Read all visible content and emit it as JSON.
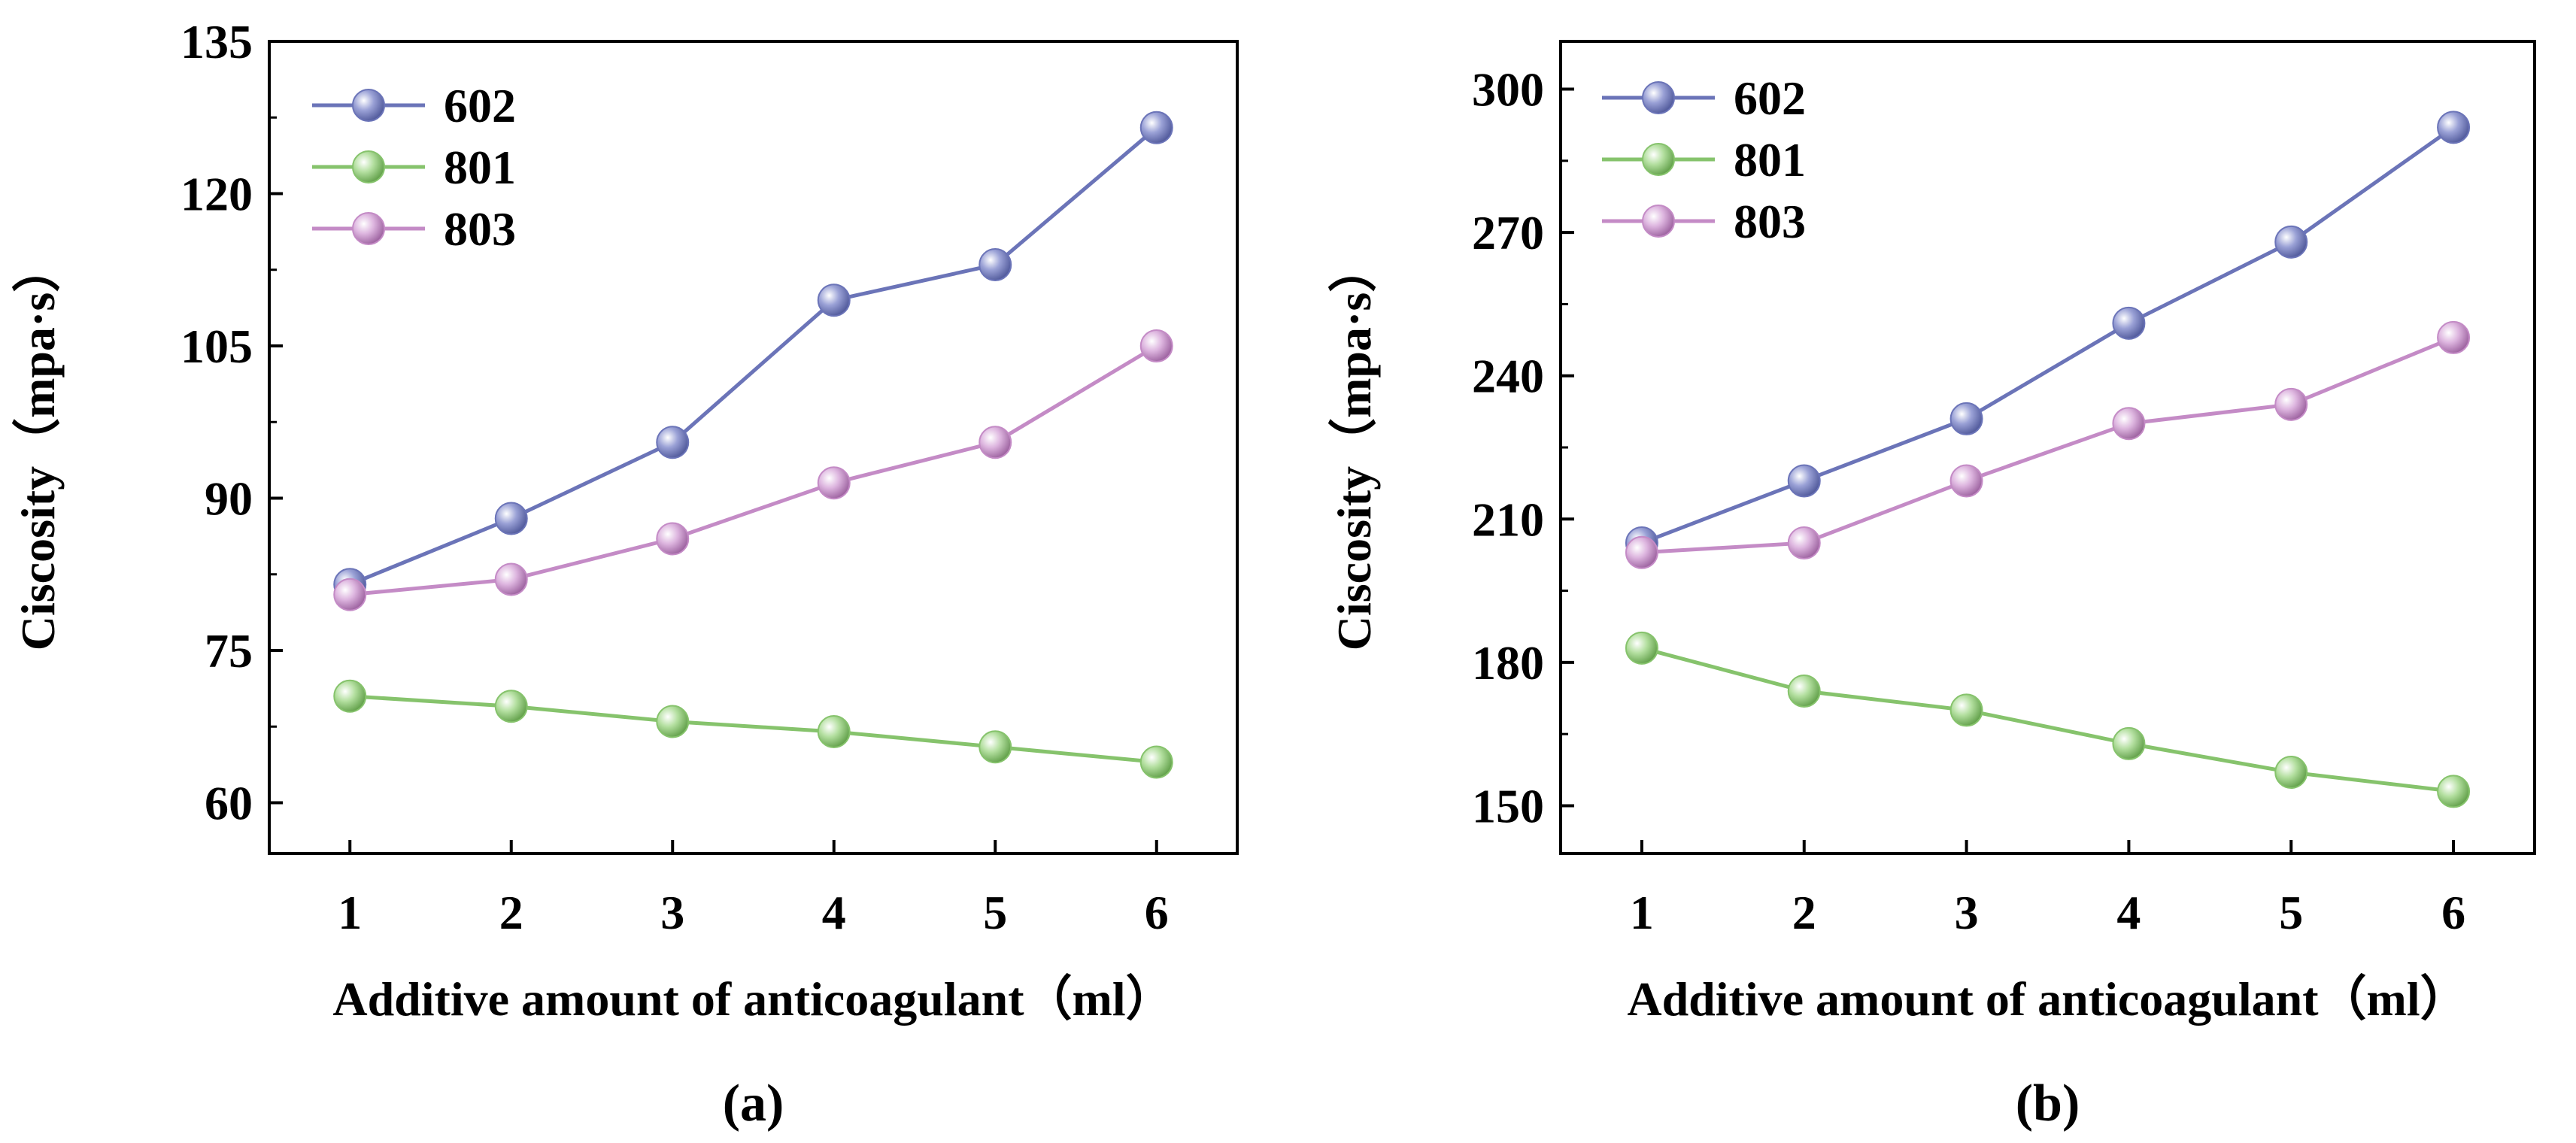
{
  "chart_data": [
    {
      "type": "line",
      "panel_label": "(a)",
      "xlabel": "Additive amount of anticoagulant（ml）",
      "ylabel": "Ciscosity（mpa·s）",
      "x": [
        1,
        2,
        3,
        4,
        5,
        6
      ],
      "x_tick_labels": [
        "1",
        "2",
        "3",
        "4",
        "5",
        "6"
      ],
      "xlim": [
        0.5,
        6.5
      ],
      "ylim": [
        55,
        135
      ],
      "yticks": [
        60,
        75,
        90,
        105,
        120,
        135
      ],
      "y_tick_labels": [
        "60",
        "75",
        "90",
        "105",
        "120",
        "135"
      ],
      "legend_position": "top-left",
      "grid": false,
      "series": [
        {
          "name": "602",
          "color": "#6b74b8",
          "values": [
            81.5,
            88.0,
            95.5,
            109.5,
            113.0,
            126.5
          ]
        },
        {
          "name": "801",
          "color": "#86c36c",
          "values": [
            70.5,
            69.5,
            68.0,
            67.0,
            65.5,
            64.0
          ]
        },
        {
          "name": "803",
          "color": "#c48bc6",
          "values": [
            80.5,
            82.0,
            86.0,
            91.5,
            95.5,
            105.0
          ]
        }
      ]
    },
    {
      "type": "line",
      "panel_label": "(b)",
      "xlabel": "Additive amount of anticoagulant（ml）",
      "ylabel": "Ciscosity（mpa·s）",
      "x": [
        1,
        2,
        3,
        4,
        5,
        6
      ],
      "x_tick_labels": [
        "1",
        "2",
        "3",
        "4",
        "5",
        "6"
      ],
      "xlim": [
        0.5,
        6.5
      ],
      "ylim": [
        140,
        310
      ],
      "yticks": [
        150,
        180,
        210,
        240,
        270,
        300
      ],
      "y_tick_labels": [
        "150",
        "180",
        "210",
        "240",
        "270",
        "300"
      ],
      "legend_position": "top-left",
      "grid": false,
      "series": [
        {
          "name": "602",
          "color": "#6b74b8",
          "values": [
            205,
            218,
            231,
            251,
            268,
            292
          ]
        },
        {
          "name": "801",
          "color": "#86c36c",
          "values": [
            183,
            174,
            170,
            163,
            157,
            153
          ]
        },
        {
          "name": "803",
          "color": "#c48bc6",
          "values": [
            203,
            205,
            218,
            230,
            234,
            248
          ]
        }
      ]
    }
  ]
}
